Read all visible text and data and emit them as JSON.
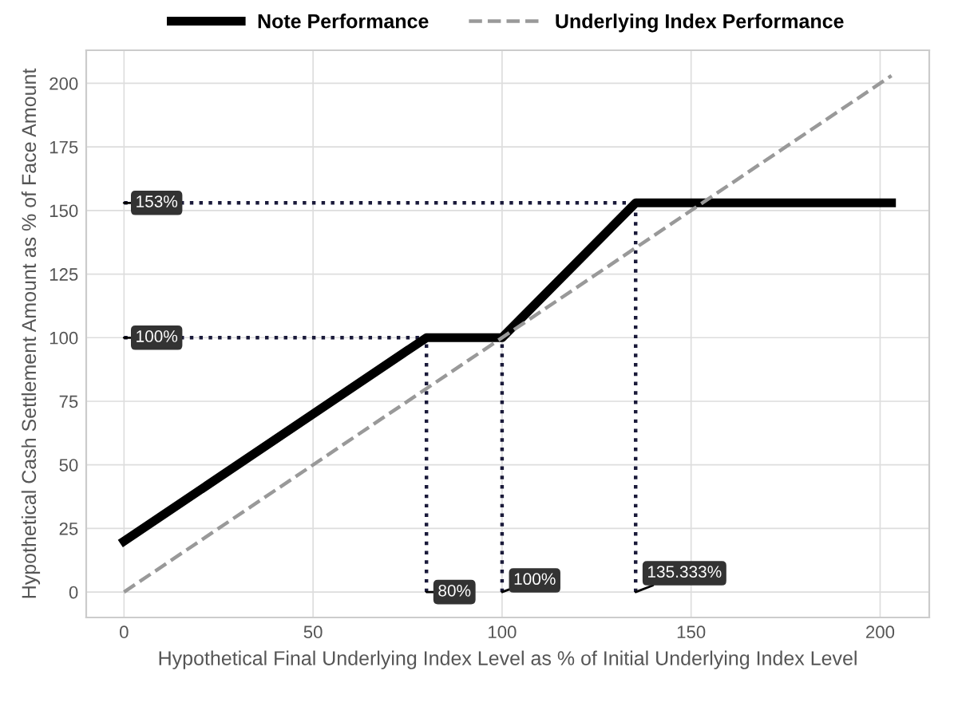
{
  "chart_data": {
    "type": "line",
    "xlabel": "Hypothetical Final Underlying Index Level as % of Initial Underlying Index Level",
    "ylabel": "Hypothetical Cash Settlement Amount as % of Face Amount",
    "series": [
      {
        "name": "Note Performance",
        "color": "#000000",
        "line_style": "solid",
        "x": [
          0,
          80,
          100,
          135.333,
          203
        ],
        "values": [
          20,
          100,
          100,
          153,
          153
        ]
      },
      {
        "name": "Underlying Index Performance",
        "color": "#999999",
        "line_style": "dashed",
        "x": [
          0,
          203
        ],
        "values": [
          0,
          203
        ]
      },
      {
        "color": "#1a1a3a",
        "line_style": "dotted",
        "x": [
          0,
          135.333
        ],
        "values": [
          153,
          153
        ]
      },
      {
        "color": "#1a1a3a",
        "line_style": "dotted",
        "x": [
          0,
          80
        ],
        "values": [
          100,
          100
        ]
      },
      {
        "color": "#1a1a3a",
        "line_style": "dotted",
        "x": [
          80,
          80
        ],
        "values": [
          0,
          100
        ]
      },
      {
        "color": "#1a1a3a",
        "line_style": "dotted",
        "x": [
          100,
          100
        ],
        "values": [
          0,
          100
        ]
      },
      {
        "color": "#1a1a3a",
        "line_style": "dotted",
        "x": [
          135.333,
          135.333
        ],
        "values": [
          0,
          153
        ]
      }
    ],
    "annotations": [
      {
        "text": "153%",
        "x": 0,
        "y": 153
      },
      {
        "text": "100%",
        "x": 0,
        "y": 100
      },
      {
        "text": "80%",
        "x": 80,
        "y": 0
      },
      {
        "text": "100%",
        "x": 100,
        "y": 0
      },
      {
        "text": "135.333%",
        "x": 135.333,
        "y": 0
      }
    ],
    "xlim": [
      -10,
      213
    ],
    "ylim": [
      -10,
      213
    ],
    "xticks": [
      0,
      50,
      100,
      150,
      200
    ],
    "yticks": [
      0,
      25,
      50,
      75,
      100,
      125,
      150,
      175,
      200
    ],
    "grid": true,
    "legend": "top"
  }
}
